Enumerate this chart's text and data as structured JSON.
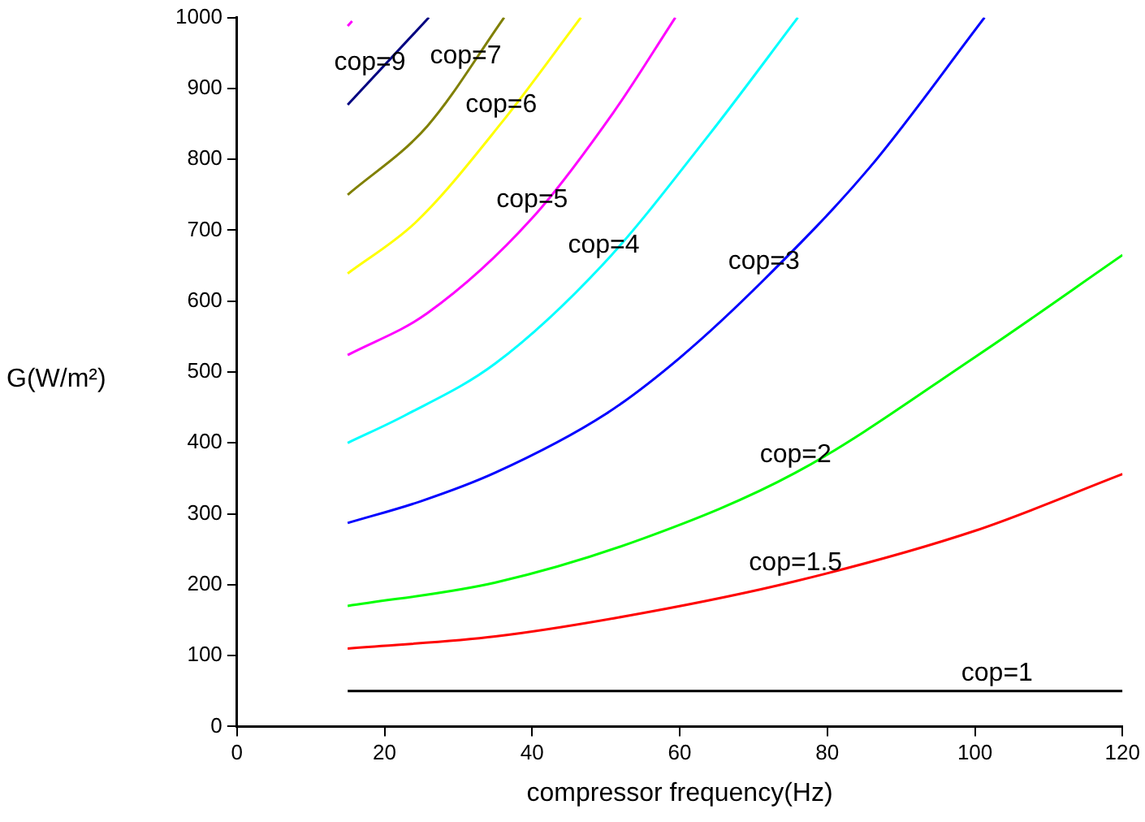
{
  "chart_data": {
    "type": "line",
    "xlabel": "compressor frequency(Hz)",
    "ylabel": "G(W/m²)",
    "xlim": [
      0,
      120
    ],
    "xticks": [
      0,
      20,
      40,
      60,
      80,
      100,
      120
    ],
    "ylim": [
      0,
      1000
    ],
    "yticks": [
      0,
      100,
      200,
      300,
      400,
      500,
      600,
      700,
      800,
      900,
      1000
    ],
    "grid": false,
    "legend": false,
    "marker": "none",
    "line_style": "solid",
    "series": [
      {
        "color": "#000000",
        "x": [
          15,
          120
        ],
        "values": [
          50,
          50
        ]
      },
      {
        "color": "#ff0000",
        "x": [
          15,
          35,
          55,
          75.7,
          100,
          120
        ],
        "values": [
          110,
          127,
          160,
          205,
          276,
          356
        ]
      },
      {
        "color": "#00ff00",
        "x": [
          15,
          35,
          55,
          75.7,
          100,
          120
        ],
        "values": [
          170,
          203,
          265,
          358,
          521,
          665
        ]
      },
      {
        "color": "#0000ff",
        "x": [
          15,
          25,
          35,
          50,
          60,
          71.4,
          85.7,
          101.3
        ],
        "values": [
          287,
          318,
          358,
          441,
          520,
          630,
          788,
          1000
        ]
      },
      {
        "color": "#00ffff",
        "x": [
          15,
          22.8,
          35,
          49.7,
          64,
          76
        ],
        "values": [
          400,
          439,
          512,
          653,
          835,
          1000
        ]
      },
      {
        "color": "#ff00ff",
        "x": [
          15,
          25.8,
          40,
          51,
          59.4
        ],
        "values": [
          524,
          583,
          717,
          866,
          1000
        ]
      },
      {
        "color": "#ffff00",
        "x": [
          15,
          24.3,
          35.8,
          46.6
        ],
        "values": [
          639,
          712,
          851,
          1000
        ]
      },
      {
        "color": "#808000",
        "x": [
          15,
          25.8,
          36.2
        ],
        "values": [
          750,
          847,
          1000
        ]
      },
      {
        "color": "#ff00ff",
        "x": [
          15,
          15.6
        ],
        "values": [
          988,
          995
        ]
      },
      {
        "color": "#000080",
        "x": [
          15,
          26
        ],
        "values": [
          877,
          1000
        ]
      }
    ],
    "annotations": [
      {
        "text": "cop=1",
        "x": 103,
        "y": 50
      },
      {
        "text": "cop=1.5",
        "x": 75.7,
        "y": 205
      },
      {
        "text": "cop=2",
        "x": 75.7,
        "y": 358
      },
      {
        "text": "cop=3",
        "x": 71.4,
        "y": 630
      },
      {
        "text": "cop=4",
        "x": 49.7,
        "y": 653
      },
      {
        "text": "cop=5",
        "x": 40,
        "y": 717
      },
      {
        "text": "cop=6",
        "x": 35.8,
        "y": 851
      },
      {
        "text": "cop=7",
        "x": 31,
        "y": 920
      },
      {
        "text": "cop=9",
        "x": 18,
        "y": 911
      }
    ]
  }
}
